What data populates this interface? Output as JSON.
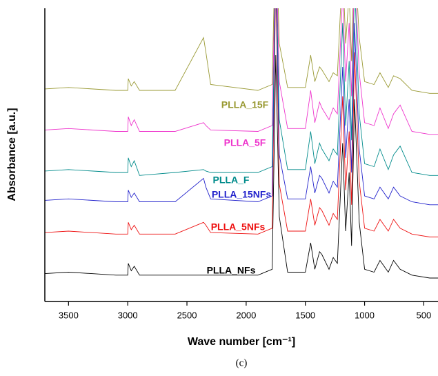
{
  "chart_data": {
    "type": "line",
    "x_label": "Wave number [cm⁻¹]",
    "y_label": "Absorbance [a.u.]",
    "caption": "(c)",
    "x": [
      3700,
      3500,
      3100,
      3000,
      2995,
      2970,
      2945,
      2900,
      2600,
      2360,
      2340,
      2300,
      1900,
      1780,
      1750,
      1720,
      1650,
      1500,
      1455,
      1420,
      1380,
      1360,
      1300,
      1265,
      1230,
      1185,
      1160,
      1130,
      1110,
      1085,
      1045,
      1000,
      920,
      870,
      800,
      755,
      700,
      600,
      450,
      380
    ],
    "xlim": [
      3700,
      380
    ],
    "xticks": [
      3500,
      3000,
      2500,
      2000,
      1500,
      1000,
      500
    ],
    "ylim": [
      0,
      100
    ],
    "series": [
      {
        "name": "PLLA_NFs",
        "color": "#000000",
        "values": [
          9.5,
          10,
          9,
          9,
          13,
          10.5,
          12,
          9,
          9,
          9,
          9,
          9,
          9,
          11,
          84,
          29,
          10,
          10,
          20,
          11,
          17,
          16,
          11,
          15,
          13,
          54,
          24,
          44,
          19,
          69,
          27,
          11,
          10,
          14,
          10,
          14,
          11,
          9,
          8,
          8
        ]
      },
      {
        "name": "PLLA_5NFs",
        "color": "#ee1111",
        "values": [
          23.5,
          24,
          23,
          23,
          27,
          24.5,
          26,
          23,
          23,
          27,
          26,
          23.5,
          23,
          25,
          110,
          40,
          24,
          24,
          35,
          26,
          32,
          31,
          26,
          30,
          28,
          70,
          38,
          58,
          33,
          85,
          41,
          25,
          24,
          28,
          24,
          28,
          25,
          23,
          22,
          22
        ]
      },
      {
        "name": "PLLA_15NFs",
        "color": "#2222cc",
        "values": [
          34.5,
          35,
          34,
          34,
          38,
          35.5,
          37,
          34,
          34,
          42,
          39,
          35,
          34,
          36,
          115,
          50,
          35,
          35,
          46,
          37,
          43,
          42,
          37,
          41,
          39,
          80,
          49,
          69,
          44,
          95,
          52,
          36,
          35,
          39,
          35,
          39,
          36,
          34,
          33,
          33
        ]
      },
      {
        "name": "PLLA_F",
        "color": "#008b8b",
        "values": [
          44.5,
          45,
          44,
          44,
          49,
          46,
          48,
          43,
          44,
          45,
          44.5,
          44,
          44,
          46,
          120,
          62,
          45,
          45,
          58,
          47,
          54,
          52,
          48,
          52,
          50,
          95,
          60,
          82,
          55,
          110,
          64,
          47,
          46,
          52,
          45,
          50,
          53,
          44,
          43,
          43
        ]
      },
      {
        "name": "PLLA_5F",
        "color": "#ee33cc",
        "values": [
          58.5,
          59,
          58,
          58,
          63,
          60,
          62,
          58,
          58,
          61,
          60,
          58.5,
          58,
          60,
          125,
          75,
          59,
          59,
          72,
          61,
          68,
          66,
          62,
          66,
          64,
          105,
          75,
          95,
          70,
          115,
          78,
          61,
          60,
          66,
          59,
          64,
          67,
          58,
          57,
          57
        ]
      },
      {
        "name": "PLLA_15F",
        "color": "#999933",
        "values": [
          72.5,
          73,
          72,
          72,
          76,
          73.5,
          75,
          72,
          72,
          90,
          85,
          74,
          72,
          74,
          130,
          88,
          73,
          73,
          84,
          75,
          80,
          79,
          75,
          78,
          77,
          115,
          88,
          105,
          82,
          120,
          90,
          75,
          74,
          78,
          73,
          77,
          76,
          72,
          71,
          71
        ]
      }
    ]
  }
}
